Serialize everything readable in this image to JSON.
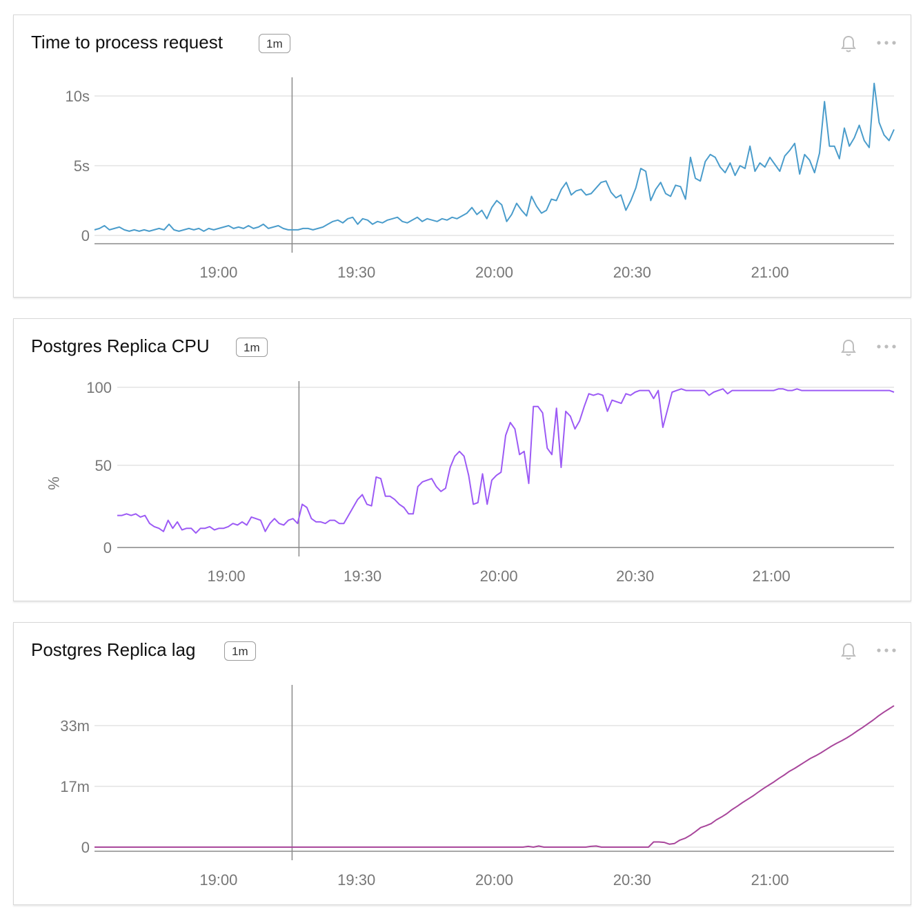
{
  "panels": [
    {
      "title": "Time to process request",
      "badge": "1m",
      "chart_data": {
        "type": "line",
        "x_ticks": [
          "19:00",
          "19:30",
          "20:00",
          "20:30",
          "21:00"
        ],
        "y_ticks": [
          "0",
          "5s",
          "10s"
        ],
        "ylabel": "",
        "ylim": [
          0,
          10
        ],
        "x_range": [
          "18:33",
          "21:27"
        ],
        "marker_time": "19:16",
        "color": "#4a9ccb",
        "series": [
          {
            "values": [
              0.4,
              0.5,
              0.7,
              0.4,
              0.5,
              0.6,
              0.4,
              0.3,
              0.4,
              0.3,
              0.4,
              0.3,
              0.4,
              0.5,
              0.4,
              0.8,
              0.4,
              0.3,
              0.4,
              0.5,
              0.4,
              0.5,
              0.3,
              0.5,
              0.4,
              0.5,
              0.6,
              0.7,
              0.5,
              0.6,
              0.5,
              0.7,
              0.5,
              0.6,
              0.8,
              0.5,
              0.6,
              0.7,
              0.5,
              0.4,
              0.4,
              0.4,
              0.5,
              0.5,
              0.4,
              0.5,
              0.6,
              0.8,
              1.0,
              1.1,
              0.9,
              1.2,
              1.3,
              0.8,
              1.2,
              1.1,
              0.8,
              1.0,
              0.9,
              1.1,
              1.2,
              1.3,
              1.0,
              0.9,
              1.1,
              1.3,
              1.0,
              1.2,
              1.1,
              1.0,
              1.2,
              1.1,
              1.3,
              1.2,
              1.4,
              1.6,
              2.0,
              1.5,
              1.8,
              1.2,
              2.0,
              2.5,
              2.2,
              1.0,
              1.5,
              2.3,
              1.8,
              1.4,
              2.8,
              2.1,
              1.6,
              1.8,
              2.6,
              2.5,
              3.3,
              3.8,
              2.9,
              3.2,
              3.3,
              2.9,
              3.0,
              3.4,
              3.8,
              3.9,
              3.1,
              2.7,
              2.9,
              1.8,
              2.5,
              3.4,
              4.8,
              4.6,
              2.5,
              3.3,
              3.8,
              3.0,
              2.8,
              3.6,
              3.5,
              2.6,
              5.6,
              4.1,
              3.9,
              5.3,
              5.8,
              5.6,
              4.9,
              4.5,
              5.2,
              4.3,
              5.0,
              4.8,
              6.4,
              4.6,
              5.2,
              4.9,
              5.6,
              5.1,
              4.6,
              5.7,
              6.1,
              6.6,
              4.4,
              5.8,
              5.4,
              4.5,
              5.9,
              9.6,
              6.4,
              6.4,
              5.5,
              7.7,
              6.4,
              7.0,
              7.9,
              6.8,
              6.3,
              10.9,
              8.1,
              7.2,
              6.8,
              7.6
            ]
          }
        ]
      }
    },
    {
      "title": "Postgres Replica CPU",
      "badge": "1m",
      "chart_data": {
        "type": "line",
        "x_ticks": [
          "19:00",
          "19:30",
          "20:00",
          "20:30",
          "21:00"
        ],
        "y_ticks": [
          "0",
          "50",
          "100"
        ],
        "ylabel": "%",
        "ylim": [
          0,
          100
        ],
        "x_range": [
          "18:36",
          "21:27"
        ],
        "marker_time": "19:16",
        "color": "#9c5af5",
        "series": [
          {
            "values": [
              20,
              20,
              21,
              20,
              21,
              19,
              20,
              15,
              13,
              12,
              10,
              17,
              12,
              16,
              11,
              12,
              12,
              9,
              12,
              12,
              13,
              11,
              12,
              12,
              13,
              15,
              14,
              16,
              14,
              19,
              18,
              17,
              10,
              15,
              18,
              15,
              14,
              17,
              18,
              15,
              27,
              25,
              18,
              16,
              16,
              15,
              17,
              17,
              15,
              15,
              20,
              25,
              30,
              33,
              27,
              26,
              44,
              43,
              32,
              32,
              30,
              27,
              25,
              21,
              21,
              38,
              41,
              42,
              43,
              38,
              35,
              37,
              50,
              57,
              60,
              57,
              45,
              27,
              28,
              46,
              27,
              42,
              45,
              47,
              70,
              78,
              74,
              58,
              60,
              40,
              88,
              88,
              84,
              62,
              58,
              87,
              50,
              85,
              82,
              74,
              79,
              88,
              96,
              95,
              96,
              95,
              85,
              92,
              91,
              90,
              96,
              95,
              97,
              98,
              98,
              98,
              93,
              98,
              75,
              86,
              97,
              98,
              99,
              98,
              98,
              98,
              98,
              98,
              95,
              97,
              98,
              99,
              96,
              98,
              98,
              98,
              98,
              98,
              98,
              98,
              98,
              98,
              98,
              99,
              99,
              98,
              98,
              99,
              98,
              98,
              98,
              98,
              98,
              98,
              98,
              98,
              98,
              98,
              98,
              98,
              98,
              98,
              98,
              98,
              98,
              98,
              98,
              98,
              97
            ]
          }
        ]
      }
    },
    {
      "title": "Postgres Replica lag",
      "badge": "1m",
      "chart_data": {
        "type": "line",
        "x_ticks": [
          "19:00",
          "19:30",
          "20:00",
          "20:30",
          "21:00"
        ],
        "y_ticks": [
          "0",
          "17m",
          "33m"
        ],
        "ylabel": "",
        "ylim": [
          0,
          45
        ],
        "x_range": [
          "18:33",
          "21:27"
        ],
        "marker_time": "19:16",
        "color": "#a8469b",
        "series": [
          {
            "values": [
              0,
              0,
              0,
              0,
              0,
              0,
              0,
              0,
              0,
              0,
              0,
              0,
              0,
              0,
              0,
              0,
              0,
              0,
              0,
              0,
              0,
              0,
              0,
              0,
              0,
              0,
              0,
              0,
              0,
              0,
              0,
              0,
              0,
              0,
              0,
              0,
              0,
              0,
              0,
              0,
              0,
              0,
              0,
              0,
              0,
              0,
              0,
              0,
              0,
              0,
              0,
              0,
              0,
              0,
              0,
              0,
              0,
              0,
              0,
              0,
              0,
              0,
              0,
              0,
              0,
              0,
              0,
              0,
              0,
              0,
              0,
              0,
              0,
              0,
              0,
              0,
              0,
              0,
              0,
              0,
              0,
              0,
              0,
              0.2,
              0,
              0.3,
              0,
              0,
              0,
              0,
              0,
              0,
              0,
              0,
              0,
              0.2,
              0.3,
              0,
              0,
              0,
              0,
              0,
              0,
              0,
              0,
              0,
              0,
              1.4,
              1.4,
              1.3,
              0.8,
              1.0,
              1.9,
              2.4,
              3.2,
              4.2,
              5.3,
              5.8,
              6.4,
              7.4,
              8.2,
              9.1,
              10.2,
              11.1,
              12.1,
              13.0,
              13.9,
              14.9,
              15.9,
              16.8,
              17.7,
              18.7,
              19.6,
              20.6,
              21.4,
              22.3,
              23.2,
              24.1,
              24.8,
              25.6,
              26.5,
              27.4,
              28.2,
              28.9,
              29.7,
              30.6,
              31.6,
              32.5,
              33.5,
              34.5,
              35.6,
              36.6,
              37.5,
              38.4
            ]
          }
        ]
      }
    }
  ]
}
